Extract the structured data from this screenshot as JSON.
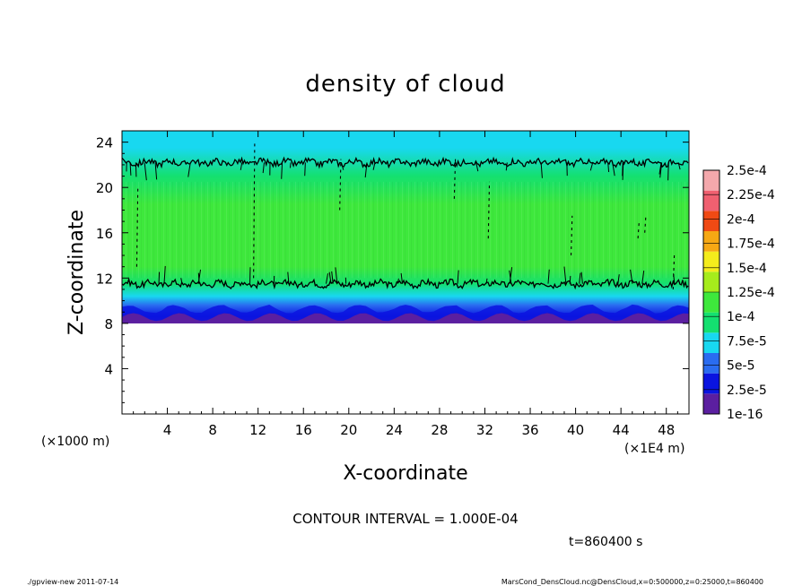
{
  "chart_data": {
    "type": "heatmap",
    "title": "density of cloud",
    "xlabel": "X-coordinate",
    "ylabel": "Z-coordinate",
    "x_unit_left": "(×1000 m)",
    "x_unit_right": "(×1E4 m)",
    "xlim": [
      0,
      50
    ],
    "ylim": [
      0,
      25
    ],
    "x_ticks": [
      4,
      8,
      12,
      16,
      20,
      24,
      28,
      32,
      36,
      40,
      44,
      48
    ],
    "y_ticks": [
      4,
      8,
      12,
      16,
      20,
      24
    ],
    "colorbar": {
      "levels": [
        "1e-16",
        "2.5e-5",
        "5e-5",
        "7.5e-5",
        "1e-4",
        "1.25e-4",
        "1.5e-4",
        "1.75e-4",
        "2e-4",
        "2.25e-4",
        "2.5e-4"
      ],
      "colors": [
        "#5b1fa0",
        "#0a14e0",
        "#2a6cf0",
        "#18d8f0",
        "#14e070",
        "#3ee83c",
        "#a6ec1c",
        "#f4ec1c",
        "#f6a814",
        "#f04a14",
        "#f06070",
        "#f4a8ac"
      ]
    },
    "cloud_layer": {
      "bottom_z": 8,
      "top_z": 23
    },
    "profile": [
      {
        "z": 8.0,
        "v": "1e-16"
      },
      {
        "z": 8.6,
        "v": "2.5e-5"
      },
      {
        "z": 9.6,
        "v": "5e-5"
      },
      {
        "z": 10.4,
        "v": "7.5e-5"
      },
      {
        "z": 11.5,
        "v": "1e-4"
      },
      {
        "z": 13.0,
        "v": "1.25e-4"
      },
      {
        "z": 18.5,
        "v": "1.25e-4"
      },
      {
        "z": 21.0,
        "v": "1e-4"
      },
      {
        "z": 23.5,
        "v": "7.5e-5"
      },
      {
        "z": 25.0,
        "v": "7.5e-5"
      }
    ],
    "contour_lines_z": [
      11.5,
      22.2
    ]
  },
  "annotations": {
    "contour_interval": "CONTOUR INTERVAL = 1.000E-04",
    "time": "t=860400 s",
    "footer_left": "./gpview-new  2011-07-14",
    "footer_right": "MarsCond_DensCloud.nc@DensCloud,x=0:500000,z=0:25000,t=860400"
  }
}
